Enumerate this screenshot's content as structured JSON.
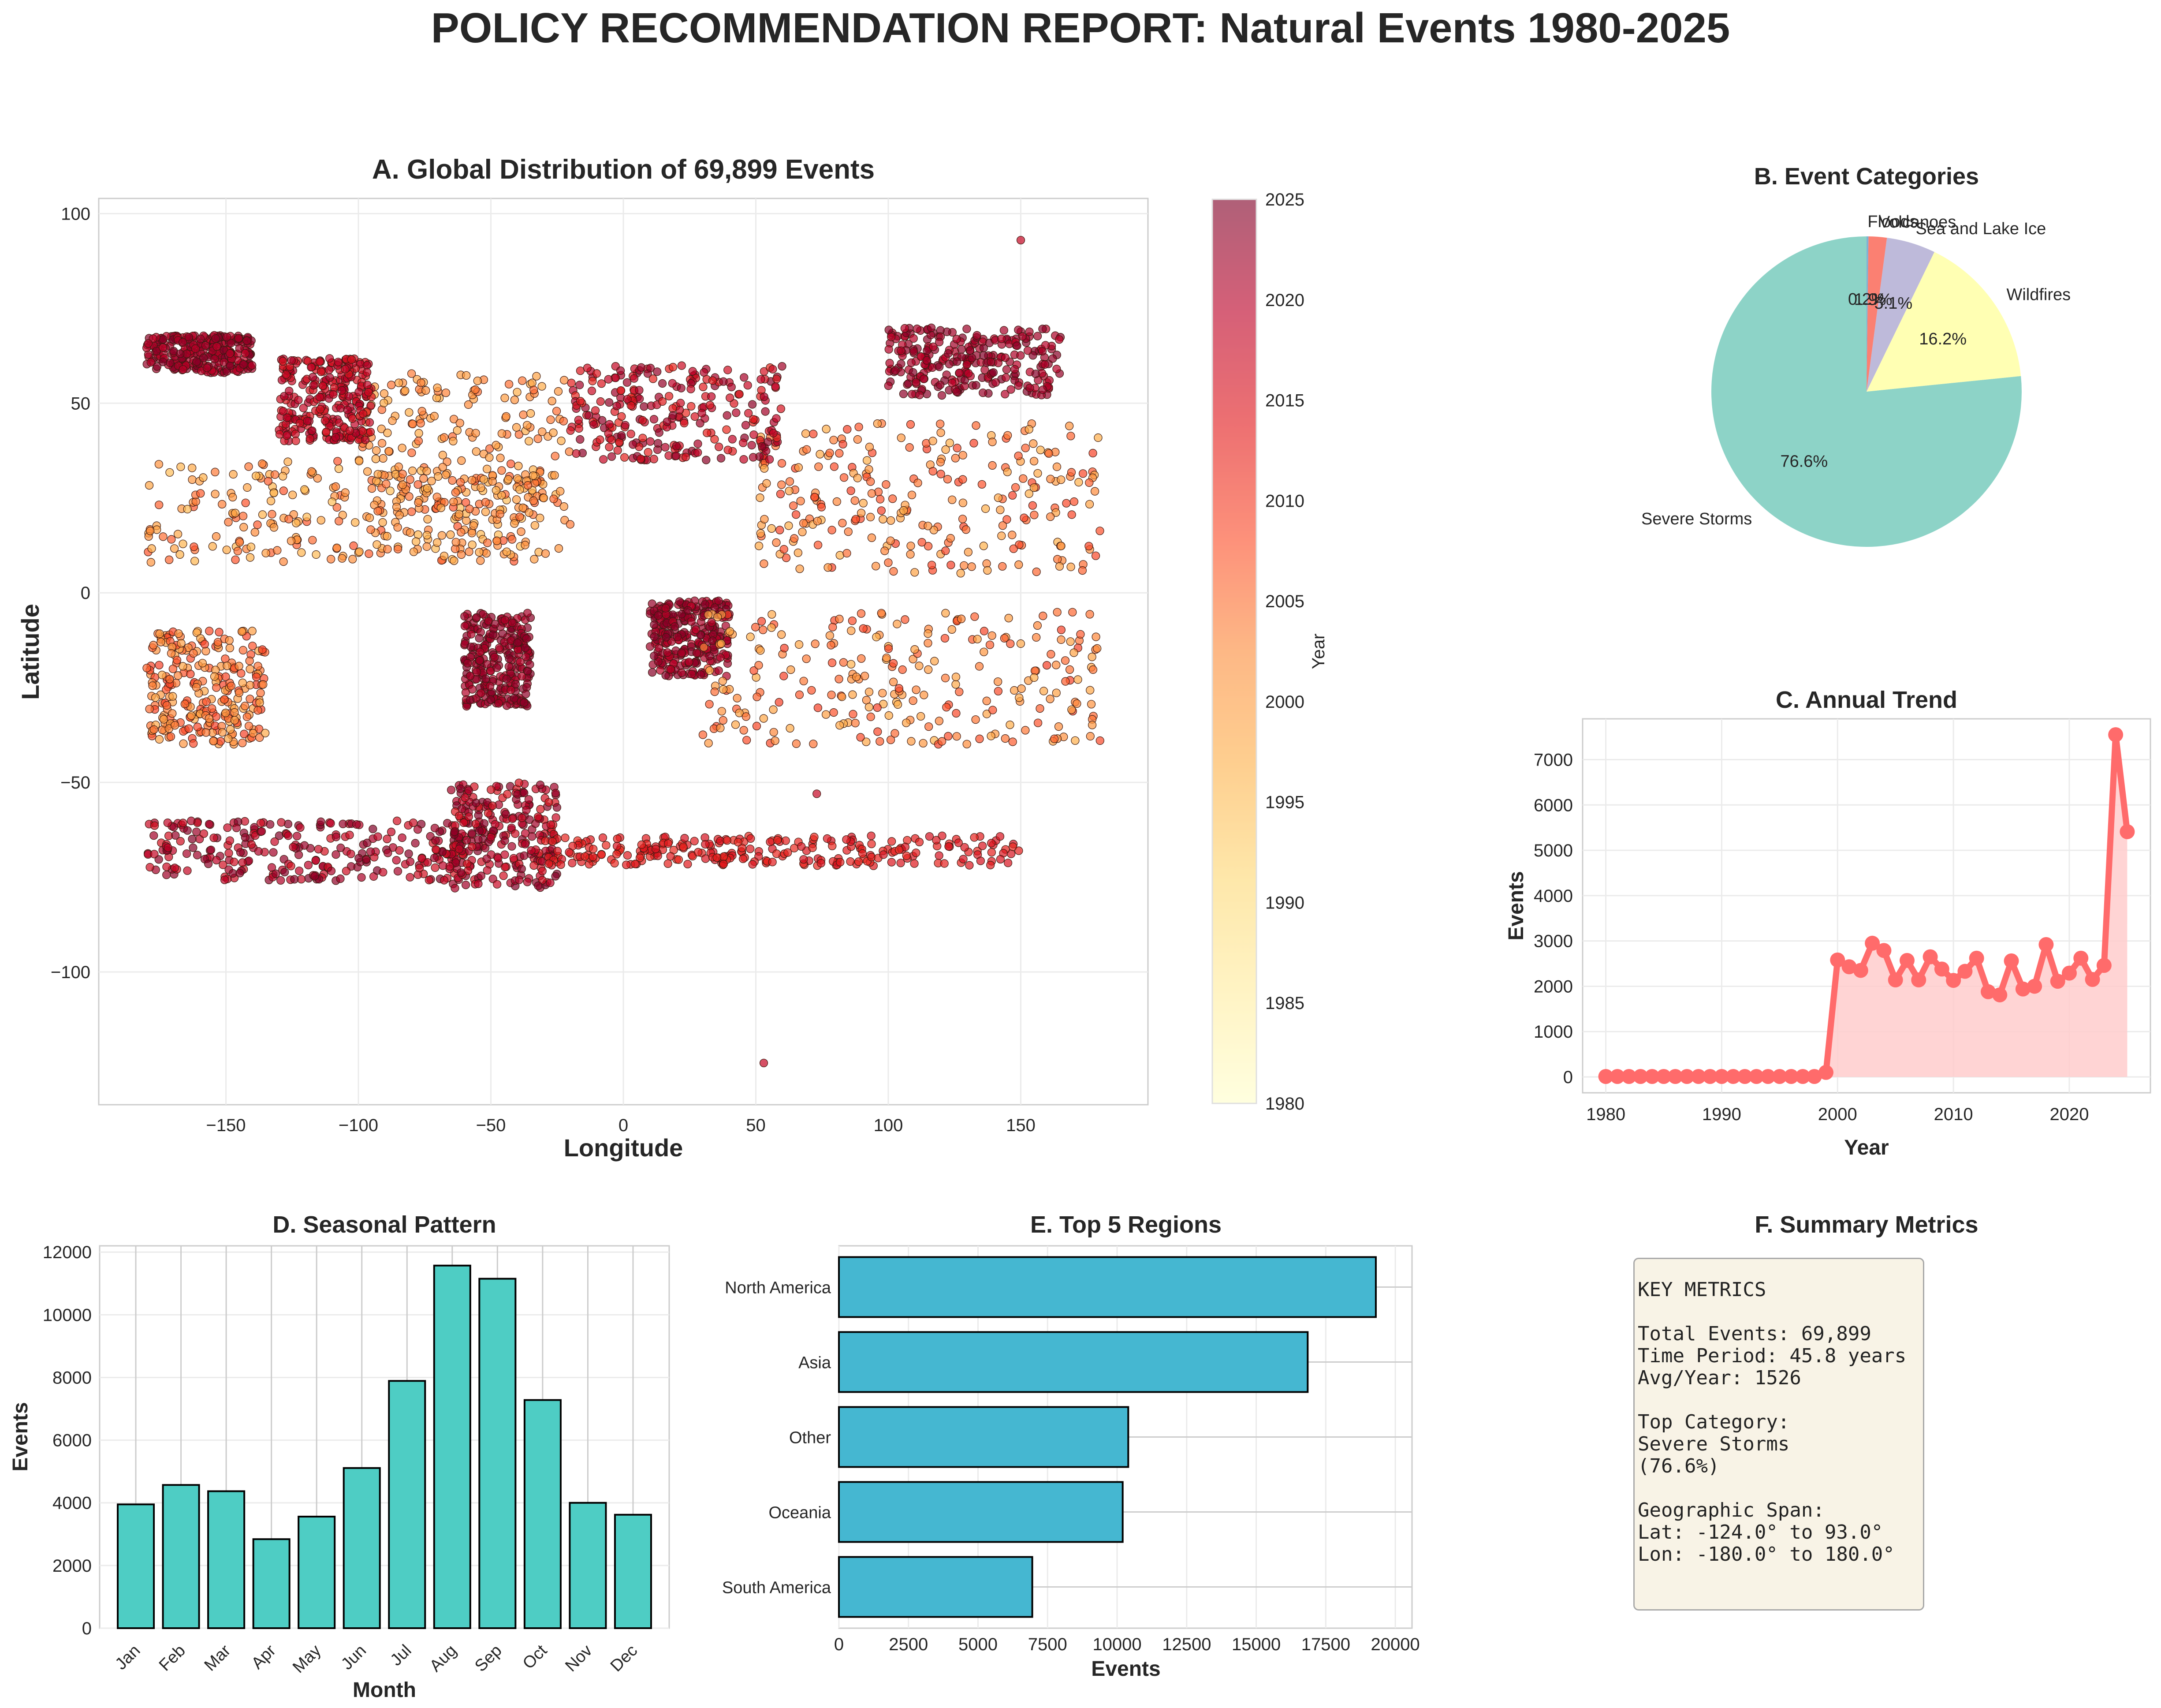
{
  "title": "POLICY RECOMMENDATION REPORT: Natural Events 1980-2025",
  "colors": {
    "pie": [
      "#8dd3c7",
      "#ffffb3",
      "#bebada",
      "#fb8072",
      "#80b1d3"
    ],
    "line": "#ff6b6b",
    "area": "#ffcccc",
    "seasonal_bar": "#4ecdc4",
    "region_bar": "#45b7d1",
    "metrics_bg": "#f8f3e6"
  },
  "chart_data": [
    {
      "id": "A",
      "type": "scatter",
      "title": "A. Global Distribution of 69,899 Events",
      "xlabel": "Longitude",
      "ylabel": "Latitude",
      "xlim": [
        -198,
        198
      ],
      "ylim": [
        -135,
        104
      ],
      "xticks": [
        -150,
        -100,
        -50,
        0,
        50,
        100,
        150
      ],
      "xtick_labels": [
        "−150",
        "−100",
        "−50",
        "0",
        "50",
        "100",
        "150"
      ],
      "yticks": [
        100,
        50,
        0,
        -50,
        -100
      ],
      "ytick_labels": [
        "100",
        "50",
        "0",
        "−50",
        "−100"
      ],
      "colorbar": {
        "label": "Year",
        "range": [
          1980,
          2025
        ],
        "ticks": [
          2025,
          2020,
          2015,
          2010,
          2005,
          2000,
          1995,
          1990,
          1985,
          1980
        ],
        "tick_labels": [
          "2025",
          "2020",
          "2015",
          "2010",
          "2005",
          "2000",
          "1995",
          "1990",
          "1985",
          "1980"
        ],
        "colormap": "YlOrRd"
      },
      "clusters": [
        {
          "lon": [
            -180,
            -30
          ],
          "lat": [
            8,
            35
          ],
          "year": [
            1995,
            2008
          ]
        },
        {
          "lon": [
            -100,
            -20
          ],
          "lat": [
            10,
            58
          ],
          "year": [
            1997,
            2006
          ]
        },
        {
          "lon": [
            -130,
            -95
          ],
          "lat": [
            40,
            62
          ],
          "year": [
            2015,
            2021
          ]
        },
        {
          "lon": [
            -180,
            -140
          ],
          "lat": [
            58,
            68
          ],
          "year": [
            2019,
            2025
          ]
        },
        {
          "lon": [
            -180,
            -135
          ],
          "lat": [
            -40,
            -10
          ],
          "year": [
            1998,
            2010
          ]
        },
        {
          "lon": [
            -60,
            -35
          ],
          "lat": [
            -30,
            -5
          ],
          "year": [
            2020,
            2025
          ]
        },
        {
          "lon": [
            -65,
            -25
          ],
          "lat": [
            -78,
            -50
          ],
          "year": [
            2015,
            2025
          ]
        },
        {
          "lon": [
            -180,
            -60
          ],
          "lat": [
            -76,
            -60
          ],
          "year": [
            2016,
            2025
          ]
        },
        {
          "lon": [
            -30,
            150
          ],
          "lat": [
            -72,
            -64
          ],
          "year": [
            2012,
            2016
          ]
        },
        {
          "lon": [
            10,
            40
          ],
          "lat": [
            -22,
            -2
          ],
          "year": [
            2019,
            2025
          ]
        },
        {
          "lon": [
            30,
            180
          ],
          "lat": [
            -40,
            -5
          ],
          "year": [
            1997,
            2010
          ]
        },
        {
          "lon": [
            50,
            180
          ],
          "lat": [
            5,
            45
          ],
          "year": [
            1997,
            2010
          ]
        },
        {
          "lon": [
            100,
            165
          ],
          "lat": [
            52,
            70
          ],
          "year": [
            2019,
            2025
          ]
        },
        {
          "lon": [
            -20,
            60
          ],
          "lat": [
            35,
            60
          ],
          "year": [
            2012,
            2024
          ]
        }
      ],
      "outliers": [
        [
          150,
          93
        ],
        [
          53,
          -124
        ],
        [
          73,
          -53
        ]
      ]
    },
    {
      "id": "B",
      "type": "pie",
      "title": "B. Event Categories",
      "slices": [
        {
          "label": "Severe Storms",
          "pct": 76.6,
          "pct_label": "76.6%"
        },
        {
          "label": "Wildfires",
          "pct": 16.2,
          "pct_label": "16.2%"
        },
        {
          "label": "Sea and Lake Ice",
          "pct": 5.1,
          "pct_label": "5.1%"
        },
        {
          "label": "Volcanoes",
          "pct": 1.9,
          "pct_label": "1.9%"
        },
        {
          "label": "Floods",
          "pct": 0.2,
          "pct_label": "0.2%"
        }
      ]
    },
    {
      "id": "C",
      "type": "line",
      "title": "C. Annual Trend",
      "xlabel": "Year",
      "ylabel": "Events",
      "xlim": [
        1978,
        2027
      ],
      "ylim": [
        -350,
        7900
      ],
      "xticks": [
        1980,
        1990,
        2000,
        2010,
        2020
      ],
      "yticks": [
        0,
        1000,
        2000,
        3000,
        4000,
        5000,
        6000,
        7000
      ],
      "x": [
        1980,
        1981,
        1982,
        1983,
        1984,
        1985,
        1986,
        1987,
        1988,
        1989,
        1990,
        1991,
        1992,
        1993,
        1994,
        1995,
        1996,
        1997,
        1998,
        1999,
        2000,
        2001,
        2002,
        2003,
        2004,
        2005,
        2006,
        2007,
        2008,
        2009,
        2010,
        2011,
        2012,
        2013,
        2014,
        2015,
        2016,
        2017,
        2018,
        2019,
        2020,
        2021,
        2022,
        2023,
        2024,
        2025
      ],
      "y": [
        10,
        10,
        10,
        10,
        10,
        10,
        10,
        10,
        10,
        10,
        10,
        10,
        10,
        10,
        10,
        10,
        10,
        10,
        10,
        100,
        2580,
        2430,
        2350,
        2950,
        2790,
        2140,
        2570,
        2140,
        2650,
        2380,
        2130,
        2330,
        2620,
        1880,
        1810,
        2560,
        1940,
        2000,
        2920,
        2110,
        2290,
        2620,
        2150,
        2460,
        7550,
        5410
      ]
    },
    {
      "id": "D",
      "type": "bar",
      "title": "D. Seasonal Pattern",
      "xlabel": "Month",
      "ylabel": "Events",
      "ylim": [
        0,
        12200
      ],
      "yticks": [
        0,
        2000,
        4000,
        6000,
        8000,
        10000,
        12000
      ],
      "categories": [
        "Jan",
        "Feb",
        "Mar",
        "Apr",
        "May",
        "Jun",
        "Jul",
        "Aug",
        "Sep",
        "Oct",
        "Nov",
        "Dec"
      ],
      "values": [
        3950,
        4570,
        4370,
        2840,
        3560,
        5110,
        7890,
        11570,
        11150,
        7280,
        4000,
        3620
      ]
    },
    {
      "id": "E",
      "type": "bar",
      "orientation": "horizontal",
      "title": "E. Top 5 Regions",
      "xlabel": "Events",
      "xlim": [
        0,
        20600
      ],
      "xticks": [
        0,
        2500,
        5000,
        7500,
        10000,
        12500,
        15000,
        17500,
        20000
      ],
      "categories": [
        "North America",
        "Asia",
        "Other",
        "Oceania",
        "South America"
      ],
      "values": [
        19300,
        16850,
        10400,
        10200,
        6950
      ]
    }
  ],
  "summary": {
    "title": "F. Summary Metrics",
    "text": "KEY METRICS\n\nTotal Events: 69,899\nTime Period: 45.8 years\nAvg/Year: 1526\n\nTop Category:\nSevere Storms\n(76.6%)\n\nGeographic Span:\nLat: -124.0° to 93.0°\nLon: -180.0° to 180.0°"
  }
}
